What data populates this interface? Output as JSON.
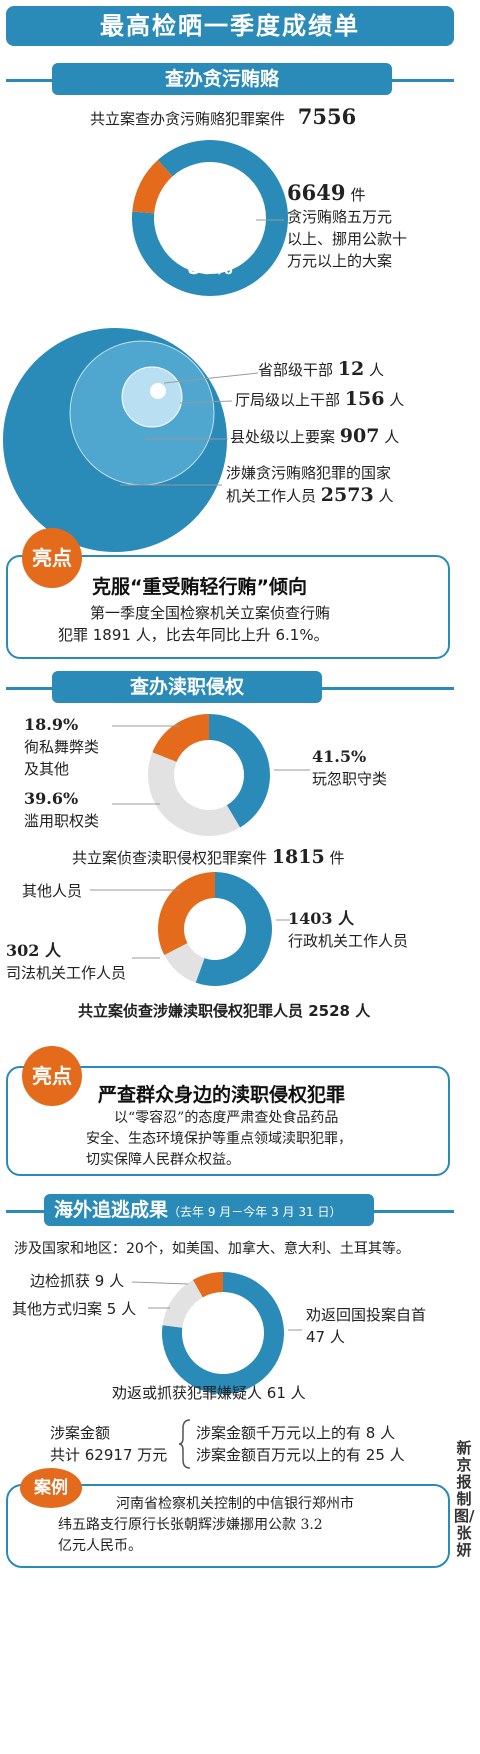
{
  "title": "最高检晒一季度成绩单",
  "colors": {
    "blue": "#2a8ab8",
    "orange": "#e46a1c",
    "grey": "#e2e2e2"
  },
  "section1": {
    "tab": "查办贪污贿赂",
    "total_label": "共立案查办贪污贿赂犯罪案件",
    "total_value": "7556",
    "big_case_value": "6649",
    "big_case_unit": "件",
    "big_case_desc": [
      "贪污贿赂五万元",
      "以上、挪用公款十",
      "万元以上的大案"
    ],
    "percent_label": "88%"
  },
  "officials": {
    "provincial_label": "省部级干部",
    "provincial_value": "12",
    "bureau_label": "厅局级以上干部",
    "bureau_value": "156",
    "county_label": "县处级以上要案",
    "county_value": "907",
    "state_label_1": "涉嫌贪污贿赂犯罪的国家",
    "state_label_2": "机关工作人员",
    "state_value": "2573",
    "unit": "人"
  },
  "highlight1": {
    "badge": "亮点",
    "headline": "克服“重受贿轻行贿”倾向",
    "body_1": "第一季度全国检察机关立案侦查行贿",
    "body_2": "犯罪 1891 人，比去年同比上升 6.1%。"
  },
  "section2": {
    "tab": "查办渎职侵权",
    "neglect_pct": "41.5%",
    "neglect_label": "玩忽职守类",
    "favoritism_pct": "18.9%",
    "favoritism_label_1": "徇私舞弊类",
    "favoritism_label_2": "及其他",
    "abuse_pct": "39.6%",
    "abuse_label": "滥用职权类",
    "cases_label": "共立案侦查渎职侵权犯罪案件",
    "cases_value": "1815",
    "cases_unit": "件",
    "other_label": "其他人员",
    "admin_value": "1403 人",
    "admin_label": "行政机关工作人员",
    "judicial_value": "302 人",
    "judicial_label": "司法机关工作人员",
    "persons_label": "共立案侦查涉嫌渎职侵权犯罪人员 2528 人"
  },
  "highlight2": {
    "badge": "亮点",
    "headline": "严查群众身边的渎职侵权犯罪",
    "body_1": "以“零容忍”的态度严肃查处食品药品",
    "body_2": "安全、生态环境保护等重点领域渎职犯罪，",
    "body_3": "切实保障人民群众权益。"
  },
  "section3": {
    "tab": "海外追逃成果",
    "tab_note": "（去年 9 月－今年 3 月 31 日）",
    "countries": "涉及国家和地区：20个，如美国、加拿大、意大利、土耳其等。",
    "border_label": "边检抓获 9 人",
    "other_way_label": "其他方式归案 5 人",
    "persuaded_1": "劝返回国投案自首",
    "persuaded_2": "47 人",
    "total_label": "劝返或抓获犯罪嫌疑人 61 人",
    "money_label_1": "涉案金额",
    "money_label_2": "共计 62917 万元",
    "over_10m": "涉案金额千万元以上的有 8 人",
    "over_1m": "涉案金额百万元以上的有 25 人"
  },
  "case": {
    "badge": "案例",
    "body_1": "河南省检察机关控制的中信银行郑州市",
    "body_2": "纬五路支行原行长张朝辉涉嫌挪用公款 3.2",
    "body_3": "亿元人民币。"
  },
  "credit": "新京报制图/张妍",
  "chart_data": [
    {
      "type": "pie",
      "title": "共立案查办贪污贿赂犯罪案件 7556",
      "categories": [
        "贪污贿赂五万元以上、挪用公款十万元以上的大案",
        "其他"
      ],
      "values": [
        6649,
        907
      ],
      "percent_labels": [
        "88%",
        ""
      ],
      "colors": [
        "#2a8ab8",
        "#e46a1c"
      ]
    },
    {
      "type": "nested-circles",
      "categories": [
        "省部级干部",
        "厅局级以上干部",
        "县处级以上要案",
        "涉嫌贪污贿赂犯罪的国家机关工作人员"
      ],
      "values": [
        12,
        156,
        907,
        2573
      ],
      "unit": "人"
    },
    {
      "type": "pie",
      "categories": [
        "玩忽职守类",
        "滥用职权类",
        "徇私舞弊类及其他"
      ],
      "values": [
        41.5,
        39.6,
        18.9
      ],
      "unit": "%",
      "colors": [
        "#2a8ab8",
        "#e2e2e2",
        "#e46a1c"
      ],
      "caption": "共立案侦查渎职侵权犯罪案件 1815 件"
    },
    {
      "type": "pie",
      "categories": [
        "行政机关工作人员",
        "司法机关工作人员",
        "其他人员"
      ],
      "values": [
        1403,
        302,
        823
      ],
      "unit": "人",
      "colors": [
        "#2a8ab8",
        "#e2e2e2",
        "#e46a1c"
      ],
      "caption": "共立案侦查涉嫌渎职侵权犯罪人员 2528 人"
    },
    {
      "type": "pie",
      "categories": [
        "劝返回国投案自首",
        "边检抓获",
        "其他方式归案"
      ],
      "values": [
        47,
        9,
        5
      ],
      "unit": "人",
      "colors": [
        "#2a8ab8",
        "#e2e2e2",
        "#e46a1c"
      ],
      "caption": "劝返或抓获犯罪嫌疑人 61 人"
    }
  ]
}
